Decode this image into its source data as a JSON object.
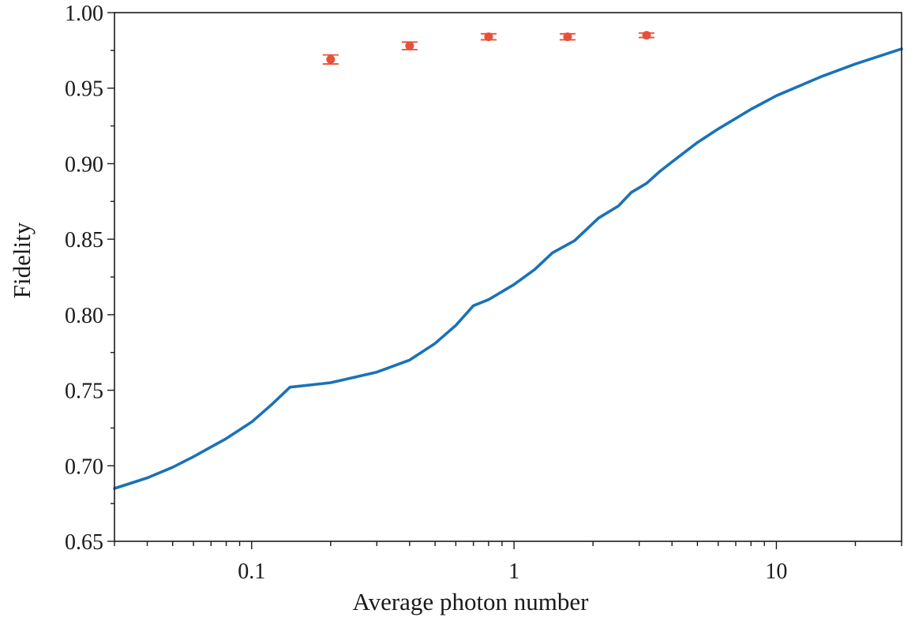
{
  "chart_data": {
    "type": "line",
    "xlabel": "Average photon number",
    "ylabel": "Fidelity",
    "xscale": "log",
    "xlim": [
      0.03,
      30
    ],
    "ylim": [
      0.65,
      1.0
    ],
    "grid": false,
    "legend": "none",
    "x_tick_labels": [
      "0.1",
      "1",
      "10"
    ],
    "y_tick_labels": [
      "0.65",
      "0.70",
      "0.75",
      "0.80",
      "0.85",
      "0.90",
      "0.95",
      "1.00"
    ],
    "series": [
      {
        "kind": "line",
        "color": "#1a72b8",
        "x": [
          0.03,
          0.04,
          0.05,
          0.06,
          0.08,
          0.1,
          0.12,
          0.14,
          0.2,
          0.3,
          0.4,
          0.5,
          0.6,
          0.7,
          0.8,
          1.0,
          1.2,
          1.4,
          1.7,
          2.1,
          2.5,
          2.8,
          3.2,
          3.6,
          4.2,
          5.0,
          6.0,
          8.0,
          10.0,
          15.0,
          20.0,
          30.0
        ],
        "y": [
          0.685,
          0.692,
          0.699,
          0.706,
          0.718,
          0.729,
          0.741,
          0.752,
          0.755,
          0.762,
          0.77,
          0.781,
          0.793,
          0.806,
          0.81,
          0.82,
          0.83,
          0.841,
          0.849,
          0.864,
          0.872,
          0.881,
          0.887,
          0.895,
          0.904,
          0.914,
          0.923,
          0.936,
          0.945,
          0.958,
          0.966,
          0.976
        ]
      },
      {
        "kind": "scatter",
        "color": "#e8503a",
        "x": [
          0.2,
          0.4,
          0.8,
          1.6,
          3.2
        ],
        "y": [
          0.969,
          0.978,
          0.984,
          0.984,
          0.985
        ],
        "yerr": [
          0.003,
          0.0025,
          0.002,
          0.002,
          0.0015
        ]
      }
    ]
  }
}
